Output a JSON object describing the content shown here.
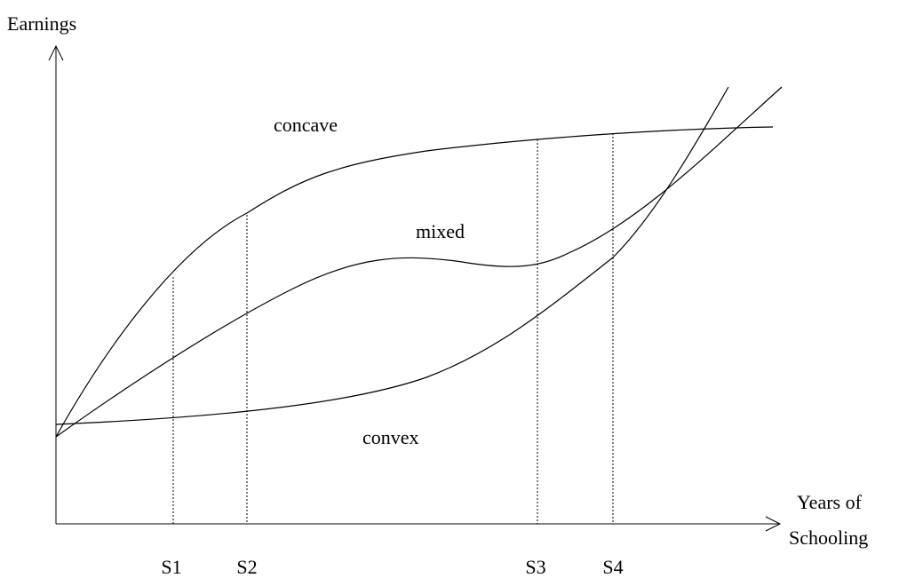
{
  "axes": {
    "y_label": "Earnings",
    "x_label": [
      "Years of",
      "Schooling"
    ]
  },
  "curves": {
    "concave": "concave",
    "mixed": "mixed",
    "convex": "convex"
  },
  "markers": [
    "S1",
    "S2",
    "S3",
    "S4"
  ]
}
